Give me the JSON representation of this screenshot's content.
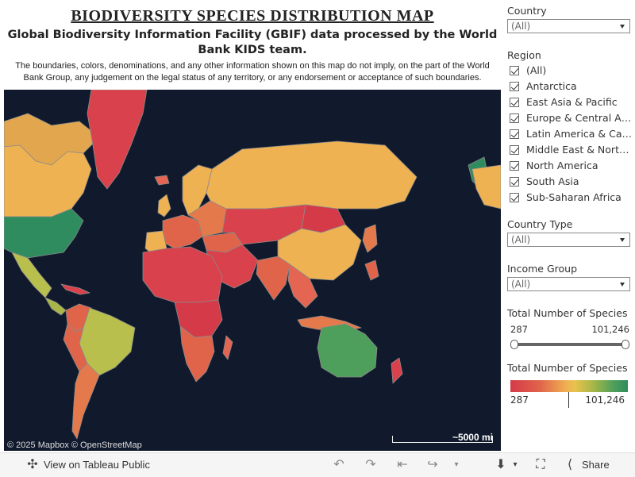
{
  "header": {
    "title": "BIODIVERSITY  SPECIES  DISTRIBUTION  MAP",
    "subtitle": "Global Biodiversity Information Facility (GBIF) data processed by the World Bank KIDS team.",
    "disclaimer": "The boundaries, colors, denominations, and any other information shown on this map do not imply, on the part of the World Bank Group, any judgement on the legal status of any territory, or any endorsement or acceptance of such boundaries."
  },
  "map": {
    "attribution": "© 2025 Mapbox  © OpenStreetMap",
    "scale_label": "~5000 mi",
    "colors": {
      "ocean": "#111a2c",
      "low": "#d53a48",
      "mid": "#efb252",
      "high": "#2f8c5e",
      "border": "#8a8a8a"
    }
  },
  "filters": {
    "country": {
      "label": "Country",
      "value": "(All)"
    },
    "region": {
      "label": "Region",
      "items": [
        "(All)",
        "Antarctica",
        "East Asia & Pacific",
        "Europe & Central Asia",
        "Latin America & Carib...",
        "Middle East & North ...",
        "North America",
        "South Asia",
        "Sub-Saharan Africa"
      ]
    },
    "country_type": {
      "label": "Country Type",
      "value": "(All)"
    },
    "income_group": {
      "label": "Income Group",
      "value": "(All)"
    },
    "species_range": {
      "label": "Total Number of Species",
      "min": "287",
      "max": "101,246"
    },
    "legend": {
      "label": "Total Number of Species",
      "min": "287",
      "max": "101,246"
    }
  },
  "toolbar": {
    "view_label": "View on Tableau Public",
    "share_label": "Share",
    "icons": [
      "undo-icon",
      "redo-icon",
      "revert-icon",
      "forward-icon",
      "download-icon",
      "fullscreen-icon",
      "share-icon"
    ]
  }
}
